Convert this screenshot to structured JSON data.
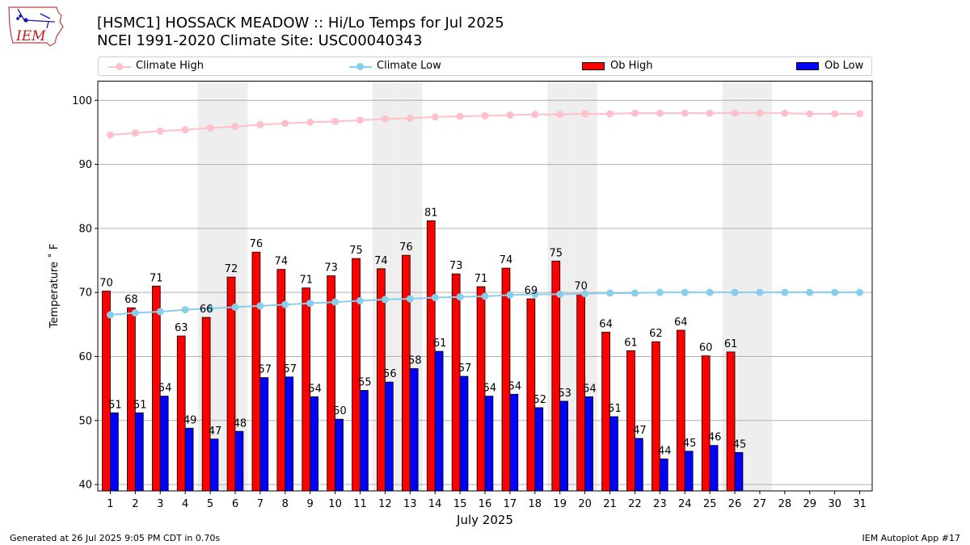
{
  "header": {
    "title_line1": "[HSMC1] HOSSACK MEADOW :: Hi/Lo Temps for Jul 2025",
    "title_line2": "NCEI 1991-2020 Climate Site: USC00040343",
    "logo_text": "IEM"
  },
  "legend": {
    "climate_high": "Climate High",
    "climate_low": "Climate Low",
    "ob_high": "Ob High",
    "ob_low": "Ob Low"
  },
  "footer": {
    "generated": "Generated at 26 Jul 2025 9:05 PM CDT in 0.70s",
    "app": "IEM Autoplot App #17"
  },
  "colors": {
    "climate_high": "#ffc0cb",
    "climate_low": "#87ceeb",
    "ob_high": "#ff0000",
    "ob_low": "#0000ff",
    "weekend_shade": "#eeeeee"
  },
  "chart_data": {
    "type": "bar",
    "xlabel": "July 2025",
    "ylabel": "Temperature ˚ F",
    "xlim": [
      0.5,
      31.5
    ],
    "ylim": [
      39,
      103
    ],
    "yticks": [
      40,
      50,
      60,
      70,
      80,
      90,
      100
    ],
    "grid": true,
    "legend_position": "top",
    "days": [
      1,
      2,
      3,
      4,
      5,
      6,
      7,
      8,
      9,
      10,
      11,
      12,
      13,
      14,
      15,
      16,
      17,
      18,
      19,
      20,
      21,
      22,
      23,
      24,
      25,
      26,
      27,
      28,
      29,
      30,
      31
    ],
    "shaded_days": [
      5,
      6,
      12,
      13,
      19,
      20,
      26,
      27
    ],
    "series": [
      {
        "name": "Ob High",
        "kind": "bar",
        "values": [
          70.2,
          67.6,
          71.0,
          63.2,
          66.1,
          72.4,
          76.3,
          73.6,
          70.7,
          72.6,
          75.3,
          73.7,
          75.8,
          81.2,
          72.9,
          70.9,
          73.8,
          69.0,
          74.9,
          69.7,
          63.8,
          60.9,
          62.3,
          64.1,
          60.1,
          60.7
        ],
        "labels": [
          "70",
          "68",
          "71",
          "63",
          "66",
          "72",
          "76",
          "74",
          "71",
          "73",
          "75",
          "74",
          "76",
          "81",
          "73",
          "71",
          "74",
          "69",
          "75",
          "70",
          "64",
          "61",
          "62",
          "64",
          "60",
          "61"
        ]
      },
      {
        "name": "Ob Low",
        "kind": "bar",
        "values": [
          51.2,
          51.2,
          53.8,
          48.8,
          47.1,
          48.3,
          56.7,
          56.8,
          53.7,
          50.2,
          54.7,
          56.0,
          58.1,
          60.8,
          56.9,
          53.8,
          54.1,
          52.0,
          53.0,
          53.7,
          50.6,
          47.2,
          44.0,
          45.2,
          46.1,
          45.0
        ],
        "labels": [
          "51",
          "51",
          "54",
          "49",
          "47",
          "48",
          "57",
          "57",
          "54",
          "50",
          "55",
          "56",
          "58",
          "61",
          "57",
          "54",
          "54",
          "52",
          "53",
          "54",
          "51",
          "47",
          "44",
          "45",
          "46",
          "45"
        ]
      },
      {
        "name": "Climate High",
        "kind": "line",
        "values": [
          94.6,
          94.9,
          95.2,
          95.4,
          95.7,
          95.9,
          96.2,
          96.4,
          96.6,
          96.7,
          96.9,
          97.1,
          97.2,
          97.4,
          97.5,
          97.6,
          97.7,
          97.8,
          97.8,
          97.9,
          97.9,
          98.0,
          98.0,
          98.0,
          98.0,
          98.0,
          98.0,
          98.0,
          97.9,
          97.9,
          97.9
        ]
      },
      {
        "name": "Climate Low",
        "kind": "line",
        "values": [
          66.5,
          66.8,
          67.0,
          67.3,
          67.5,
          67.7,
          67.9,
          68.1,
          68.3,
          68.5,
          68.7,
          68.9,
          69.0,
          69.2,
          69.3,
          69.4,
          69.6,
          69.7,
          69.7,
          69.8,
          69.9,
          69.9,
          70.0,
          70.0,
          70.0,
          70.0,
          70.0,
          70.0,
          70.0,
          70.0,
          70.0
        ]
      }
    ]
  }
}
